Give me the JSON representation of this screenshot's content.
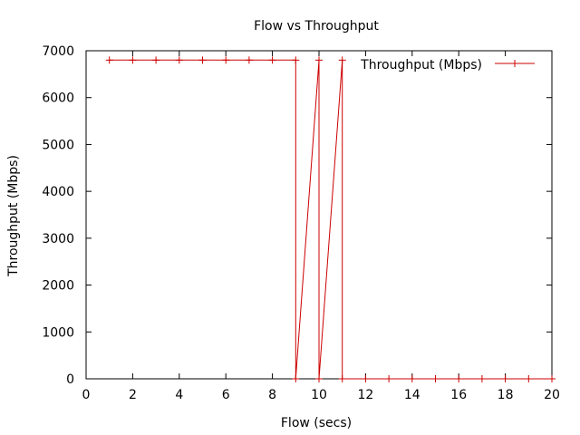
{
  "chart_data": {
    "type": "line",
    "title": "Flow vs Throughput",
    "xlabel": "Flow (secs)",
    "ylabel": "Throughput (Mbps)",
    "xlim": [
      0,
      20
    ],
    "ylim": [
      0,
      7000
    ],
    "x_ticks": [
      0,
      2,
      4,
      6,
      8,
      10,
      12,
      14,
      16,
      18,
      20
    ],
    "y_ticks": [
      0,
      1000,
      2000,
      3000,
      4000,
      5000,
      6000,
      7000
    ],
    "grid": false,
    "legend_position": "top-right",
    "series": [
      {
        "name": "Throughput (Mbps)",
        "color": "#cc0000",
        "marker": "plus",
        "points": [
          [
            1,
            6800
          ],
          [
            2,
            6800
          ],
          [
            3,
            6800
          ],
          [
            4,
            6800
          ],
          [
            5,
            6800
          ],
          [
            6,
            6800
          ],
          [
            7,
            6800
          ],
          [
            8,
            6800
          ],
          [
            9,
            6800
          ],
          [
            9,
            0
          ],
          [
            10,
            6800
          ],
          [
            10,
            0
          ],
          [
            11,
            6800
          ],
          [
            11,
            0
          ],
          [
            12,
            0
          ],
          [
            13,
            0
          ],
          [
            14,
            0
          ],
          [
            15,
            0
          ],
          [
            16,
            0
          ],
          [
            17,
            0
          ],
          [
            18,
            0
          ],
          [
            19,
            0
          ],
          [
            20,
            0
          ]
        ]
      }
    ]
  }
}
